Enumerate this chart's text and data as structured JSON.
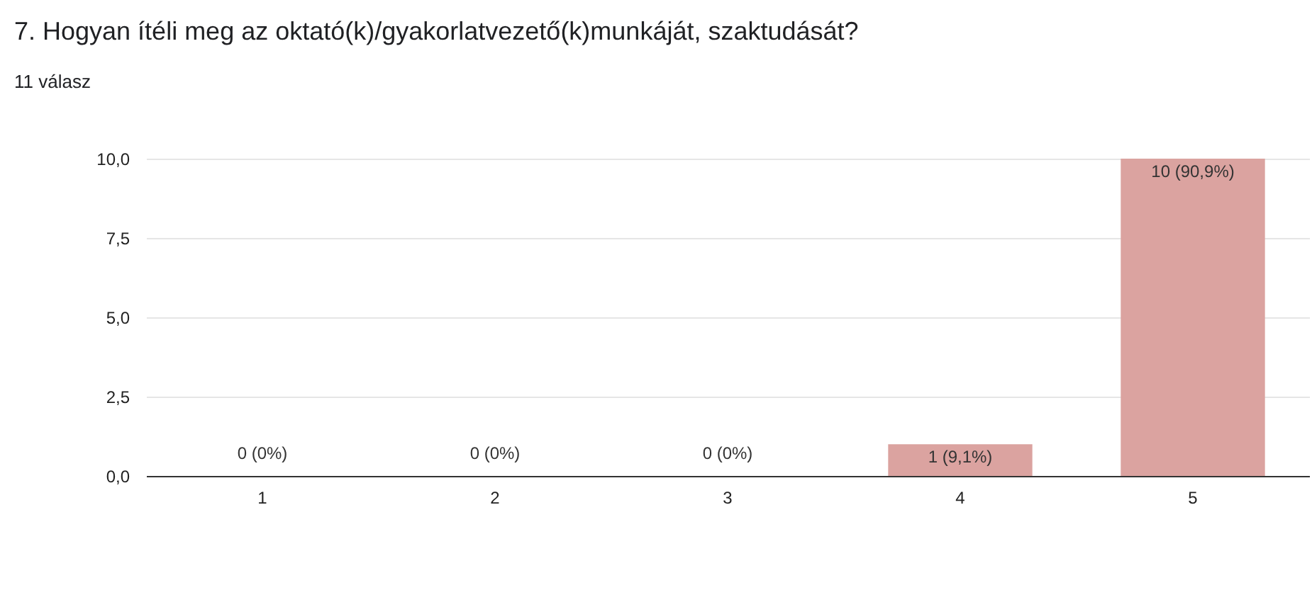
{
  "chart_data": {
    "type": "bar",
    "title": "7. Hogyan ítéli meg az oktató(k)/gyakorlatvezető(k)munkáját, szaktudását?",
    "subtitle": "11 válasz",
    "categories": [
      "1",
      "2",
      "3",
      "4",
      "5"
    ],
    "values": [
      0,
      0,
      0,
      1,
      10
    ],
    "color": "#dba3a0",
    "value_labels": [
      "0 (0%)",
      "0 (0%)",
      "0 (0%)",
      "1 (9,1%)",
      "10 (90,9%)"
    ],
    "ylim": [
      0,
      10
    ],
    "yticks": [
      {
        "value": 0,
        "label": "0,0"
      },
      {
        "value": 2.5,
        "label": "2,5"
      },
      {
        "value": 5,
        "label": "5,0"
      },
      {
        "value": 7.5,
        "label": "7,5"
      },
      {
        "value": 10,
        "label": "10,0"
      }
    ],
    "grid": "y"
  }
}
